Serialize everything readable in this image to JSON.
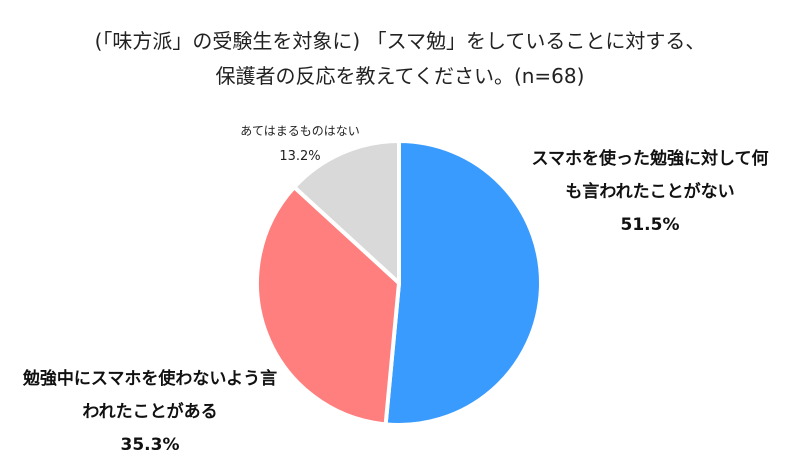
{
  "title": {
    "line1": "(「味方派」の受験生を対象に) 「スマ勉」をしていることに対する、",
    "line2": "保護者の反応を教えてください。(n=68)"
  },
  "chart_data": {
    "type": "pie",
    "title": "(「味方派」の受験生を対象に) 「スマ勉」をしていることに対する、保護者の反応を教えてください。(n=68)",
    "n": 68,
    "slices": [
      {
        "label": "スマホを使った勉強に対して何も言われたことがない",
        "value": 51.5,
        "display": "51.5%",
        "color": "#3A9BFF"
      },
      {
        "label": "勉強中にスマホを使わないよう言われたことがある",
        "value": 35.3,
        "display": "35.3%",
        "color": "#FF7F7F"
      },
      {
        "label": "あてはまるものはない",
        "value": 13.2,
        "display": "13.2%",
        "color": "#D9D9D9"
      }
    ],
    "start_angle": "12 o'clock",
    "direction": "clockwise",
    "legend": "none (data labels)"
  },
  "labels": {
    "blue": {
      "line1": "スマホを使った勉強に対して何",
      "line2": "も言われたことがない",
      "pct": "51.5%"
    },
    "red": {
      "line1": "勉強中にスマホを使わないよう言",
      "line2": "われたことがある",
      "pct": "35.3%"
    },
    "gray": {
      "line1": "あてはまるものはない",
      "pct": "13.2%"
    }
  }
}
